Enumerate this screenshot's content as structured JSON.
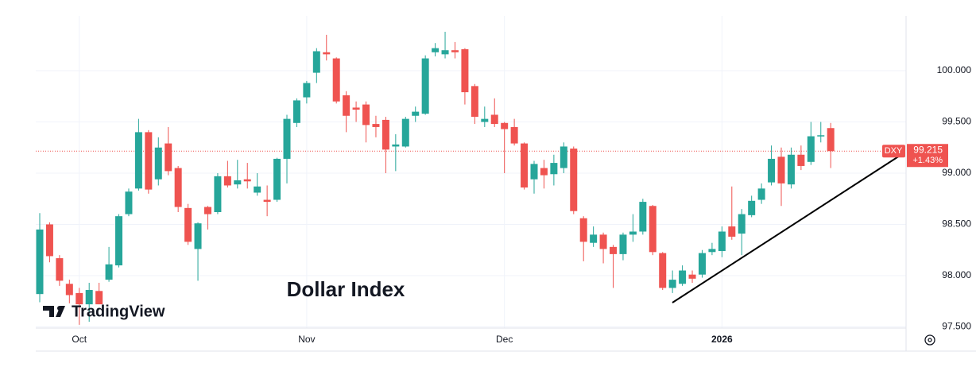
{
  "chart_data": {
    "type": "candlestick",
    "title": "Dollar Index",
    "brand": "TradingView",
    "symbol": "DXY",
    "last_price": 99.215,
    "change_label": "+1.43%",
    "up_color": "#26a69a",
    "down_color": "#ef5350",
    "grid": true,
    "ylim": [
      97.488,
      100.473
    ],
    "yticks": [
      {
        "value": 97.5,
        "label": "97.500"
      },
      {
        "value": 98,
        "label": "98.000"
      },
      {
        "value": 98.5,
        "label": "98.500"
      },
      {
        "value": 99,
        "label": "99.000"
      },
      {
        "value": 99.5,
        "label": "99.500"
      },
      {
        "value": 100,
        "label": "100.000"
      }
    ],
    "categories": [
      null,
      null,
      null,
      null,
      "Oct",
      null,
      null,
      null,
      null,
      null,
      null,
      null,
      null,
      null,
      null,
      null,
      null,
      null,
      null,
      null,
      null,
      null,
      null,
      null,
      null,
      null,
      null,
      "Nov",
      null,
      null,
      null,
      null,
      null,
      null,
      null,
      null,
      null,
      null,
      null,
      null,
      null,
      null,
      null,
      null,
      null,
      null,
      null,
      "Dec",
      null,
      null,
      null,
      null,
      null,
      null,
      null,
      null,
      null,
      null,
      null,
      null,
      null,
      null,
      null,
      null,
      null,
      null,
      null,
      null,
      null,
      "2026",
      null,
      null,
      null,
      null,
      null,
      null,
      null,
      null,
      null,
      null,
      null
    ],
    "open": [
      97.82,
      98.5,
      98.17,
      97.92,
      97.83,
      97.72,
      97.85,
      97.96,
      98.1,
      98.6,
      98.85,
      99.4,
      98.94,
      99.29,
      99.05,
      98.66,
      98.26,
      98.67,
      98.62,
      98.97,
      98.89,
      98.94,
      98.81,
      98.74,
      98.74,
      99.14,
      99.49,
      99.74,
      99.98,
      100.18,
      100.12,
      99.76,
      99.64,
      99.67,
      99.48,
      99.52,
      99.26,
      99.26,
      99.56,
      99.58,
      100.18,
      100.16,
      100.2,
      100.21,
      99.85,
      99.5,
      99.57,
      99.49,
      99.45,
      99.29,
      98.94,
      99.05,
      98.99,
      99.05,
      99.24,
      98.56,
      98.32,
      98.4,
      98.28,
      98.21,
      98.4,
      98.43,
      98.68,
      98.22,
      97.88,
      97.92,
      98.01,
      98.01,
      98.23,
      98.24,
      98.48,
      98.41,
      98.59,
      98.74,
      98.91,
      99.16,
      98.89,
      99.18,
      99.11,
      99.36,
      99.44
    ],
    "high": [
      98.61,
      98.52,
      98.2,
      97.96,
      97.88,
      97.93,
      97.93,
      98.28,
      98.6,
      98.85,
      99.53,
      99.42,
      99.35,
      99.45,
      99.07,
      98.7,
      98.52,
      98.68,
      99.0,
      99.12,
      99.13,
      99.1,
      99.0,
      98.88,
      99.15,
      99.57,
      99.73,
      99.9,
      100.22,
      100.35,
      100.13,
      99.8,
      99.7,
      99.7,
      99.56,
      99.55,
      99.38,
      99.55,
      99.65,
      100.15,
      100.27,
      100.38,
      100.28,
      100.22,
      99.87,
      99.65,
      99.73,
      99.5,
      99.53,
      99.3,
      99.12,
      99.13,
      99.18,
      99.3,
      99.26,
      98.58,
      98.48,
      98.42,
      98.3,
      98.42,
      98.6,
      98.75,
      98.69,
      98.23,
      98.05,
      98.1,
      98.05,
      98.25,
      98.32,
      98.48,
      98.87,
      98.65,
      98.78,
      98.9,
      99.27,
      99.25,
      99.25,
      99.27,
      99.5,
      99.5,
      99.49
    ],
    "low": [
      97.74,
      98.13,
      97.9,
      97.73,
      97.52,
      97.55,
      97.72,
      97.94,
      98.08,
      98.58,
      98.83,
      98.8,
      98.88,
      98.98,
      98.62,
      98.3,
      97.95,
      98.45,
      98.6,
      98.86,
      98.85,
      98.85,
      98.78,
      98.58,
      98.72,
      98.9,
      99.45,
      99.68,
      99.88,
      100.1,
      99.68,
      99.4,
      99.5,
      99.3,
      99.35,
      99.0,
      99.02,
      99.25,
      99.5,
      99.57,
      100.14,
      100.12,
      100.12,
      99.67,
      99.48,
      99.45,
      99.45,
      99.0,
      99.27,
      98.84,
      98.8,
      98.85,
      98.88,
      99.0,
      98.6,
      98.14,
      98.28,
      98.12,
      97.88,
      98.15,
      98.33,
      98.4,
      98.2,
      97.86,
      97.83,
      97.9,
      97.93,
      97.98,
      98.2,
      98.18,
      98.35,
      98.2,
      98.57,
      98.7,
      98.88,
      98.68,
      98.85,
      99.03,
      99.08,
      99.3,
      99.05
    ],
    "close": [
      98.45,
      98.19,
      97.95,
      97.81,
      97.72,
      97.86,
      97.72,
      98.11,
      98.58,
      98.82,
      99.4,
      98.84,
      99.25,
      99.02,
      98.67,
      98.33,
      98.51,
      98.6,
      98.97,
      98.88,
      98.93,
      98.92,
      98.87,
      98.72,
      99.14,
      99.53,
      99.71,
      99.88,
      100.19,
      100.16,
      99.7,
      99.56,
      99.62,
      99.47,
      99.45,
      99.23,
      99.28,
      99.53,
      99.6,
      100.12,
      100.22,
      100.2,
      100.18,
      99.79,
      99.55,
      99.53,
      99.48,
      99.43,
      99.29,
      98.86,
      99.09,
      98.98,
      99.1,
      99.26,
      98.63,
      98.33,
      98.4,
      98.26,
      98.21,
      98.4,
      98.43,
      98.72,
      98.23,
      97.88,
      97.96,
      98.05,
      97.97,
      98.22,
      98.26,
      98.43,
      98.38,
      98.6,
      98.73,
      98.85,
      99.14,
      98.9,
      99.18,
      99.07,
      99.36,
      99.37,
      99.215
    ]
  }
}
